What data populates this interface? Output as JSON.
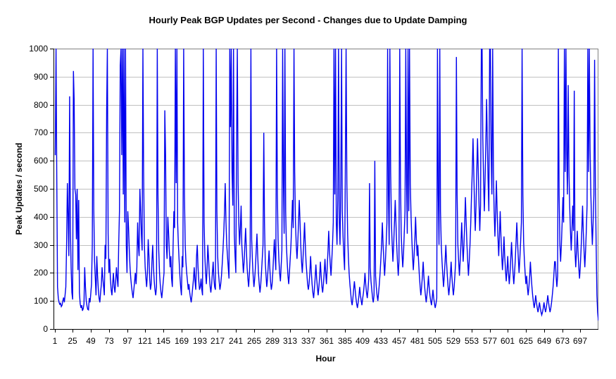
{
  "chart_data": {
    "type": "line",
    "title": "Hourly Peak BGP Updates per Second - Changes due to Update Damping",
    "xlabel": "Hour",
    "ylabel": "Peak Updates / second",
    "ylim": [
      0,
      1000
    ],
    "y_ticks": [
      0,
      100,
      200,
      300,
      400,
      500,
      600,
      700,
      800,
      900,
      1000
    ],
    "x_ticks": [
      1,
      25,
      49,
      73,
      97,
      121,
      145,
      169,
      193,
      217,
      241,
      265,
      289,
      313,
      337,
      361,
      385,
      409,
      433,
      457,
      481,
      505,
      529,
      553,
      577,
      601,
      625,
      649,
      673,
      697
    ],
    "x_start_hour": 1,
    "x_step_hours": 1,
    "grid": "horizontal",
    "legend": "none",
    "colors": {
      "line": "#0000EE",
      "gridline": "#C0C0C0",
      "plot_border": "#808080",
      "axis": "#000000",
      "text": "#000000",
      "background": "#FFFFFF"
    },
    "values": [
      620,
      1000,
      560,
      150,
      110,
      95,
      88,
      92,
      80,
      85,
      100,
      112,
      95,
      120,
      150,
      300,
      520,
      410,
      260,
      830,
      360,
      220,
      130,
      105,
      920,
      820,
      500,
      480,
      320,
      500,
      210,
      460,
      130,
      90,
      75,
      85,
      65,
      72,
      90,
      220,
      150,
      100,
      82,
      70,
      68,
      110,
      95,
      125,
      160,
      300,
      1000,
      430,
      240,
      180,
      120,
      260,
      190,
      140,
      110,
      95,
      130,
      160,
      220,
      180,
      150,
      120,
      300,
      250,
      780,
      1000,
      340,
      200,
      250,
      180,
      140,
      120,
      160,
      200,
      150,
      130,
      170,
      220,
      180,
      150,
      300,
      420,
      940,
      1000,
      620,
      1000,
      480,
      1000,
      380,
      1000,
      300,
      200,
      420,
      360,
      280,
      220,
      180,
      150,
      130,
      110,
      140,
      170,
      200,
      160,
      220,
      380,
      300,
      260,
      500,
      420,
      340,
      280,
      1000,
      560,
      300,
      220,
      180,
      150,
      200,
      320,
      260,
      180,
      140,
      160,
      240,
      300,
      220,
      170,
      140,
      120,
      150,
      1000,
      480,
      280,
      200,
      160,
      130,
      110,
      140,
      170,
      200,
      780,
      620,
      300,
      250,
      400,
      340,
      280,
      220,
      260,
      180,
      150,
      300,
      420,
      360,
      1000,
      520,
      1000,
      380,
      300,
      240,
      190,
      150,
      120,
      260,
      220,
      1000,
      480,
      300,
      240,
      200,
      170,
      140,
      160,
      130,
      110,
      95,
      120,
      150,
      180,
      220,
      170,
      140,
      260,
      300,
      220,
      170,
      140,
      150,
      180,
      140,
      120,
      1000,
      380,
      260,
      200,
      160,
      220,
      300,
      250,
      190,
      150,
      130,
      160,
      200,
      240,
      180,
      150,
      140,
      1000,
      420,
      260,
      200,
      170,
      140,
      160,
      190,
      230,
      280,
      340,
      420,
      520,
      380,
      300,
      260,
      220,
      180,
      1000,
      720,
      1000,
      560,
      440,
      1000,
      340,
      260,
      200,
      640,
      1000,
      520,
      380,
      300,
      360,
      440,
      300,
      250,
      200,
      240,
      300,
      360,
      280,
      220,
      180,
      150,
      200,
      260,
      1000,
      320,
      240,
      190,
      150,
      180,
      220,
      280,
      340,
      260,
      200,
      160,
      130,
      160,
      200,
      250,
      300,
      700,
      380,
      240,
      190,
      150,
      180,
      230,
      280,
      220,
      170,
      140,
      160,
      200,
      260,
      320,
      260,
      210,
      1000,
      480,
      320,
      250,
      200,
      170,
      220,
      280,
      1000,
      520,
      340,
      1000,
      420,
      300,
      240,
      190,
      160,
      200,
      250,
      300,
      380,
      460,
      360,
      1000,
      560,
      380,
      300,
      250,
      300,
      380,
      460,
      380,
      300,
      240,
      200,
      250,
      310,
      380,
      300,
      240,
      200,
      160,
      140,
      160,
      200,
      260,
      200,
      160,
      130,
      110,
      140,
      180,
      230,
      180,
      150,
      120,
      150,
      190,
      240,
      190,
      150,
      130,
      160,
      200,
      250,
      200,
      160,
      220,
      280,
      350,
      280,
      230,
      190,
      240,
      300,
      380,
      1000,
      480,
      1000,
      380,
      300,
      460,
      1000,
      380,
      300,
      520,
      1000,
      420,
      330,
      260,
      210,
      560,
      1000,
      520,
      340,
      260,
      200,
      160,
      130,
      100,
      85,
      110,
      140,
      170,
      140,
      110,
      90,
      75,
      95,
      120,
      150,
      120,
      100,
      85,
      110,
      130,
      160,
      200,
      160,
      130,
      110,
      140,
      180,
      520,
      220,
      170,
      140,
      110,
      95,
      120,
      600,
      190,
      150,
      120,
      100,
      130,
      160,
      200,
      250,
      300,
      380,
      300,
      240,
      190,
      240,
      300,
      380,
      1000,
      480,
      300,
      1000,
      560,
      380,
      300,
      240,
      300,
      380,
      460,
      380,
      300,
      240,
      190,
      240,
      1000,
      520,
      340,
      270,
      220,
      270,
      340,
      420,
      1000,
      520,
      340,
      1000,
      420,
      1000,
      520,
      400,
      320,
      260,
      210,
      260,
      320,
      400,
      320,
      260,
      300,
      240,
      190,
      150,
      120,
      150,
      190,
      240,
      190,
      150,
      120,
      95,
      120,
      150,
      190,
      150,
      120,
      100,
      85,
      110,
      140,
      110,
      90,
      75,
      90,
      110,
      1000,
      480,
      300,
      1000,
      420,
      300,
      240,
      190,
      150,
      190,
      240,
      300,
      240,
      190,
      150,
      120,
      150,
      190,
      240,
      190,
      150,
      120,
      150,
      190,
      240,
      970,
      480,
      300,
      240,
      190,
      240,
      300,
      380,
      300,
      240,
      300,
      380,
      470,
      380,
      300,
      240,
      190,
      240,
      300,
      380,
      470,
      560,
      680,
      560,
      440,
      350,
      440,
      560,
      680,
      560,
      440,
      350,
      440,
      1000,
      1000,
      680,
      530,
      420,
      530,
      660,
      820,
      660,
      530,
      420,
      1000,
      1000,
      640,
      480,
      1000,
      560,
      420,
      330,
      420,
      530,
      420,
      330,
      260,
      330,
      420,
      330,
      260,
      210,
      260,
      330,
      260,
      210,
      170,
      210,
      260,
      200,
      160,
      200,
      250,
      310,
      250,
      200,
      160,
      200,
      250,
      310,
      380,
      310,
      250,
      200,
      250,
      310,
      380,
      1000,
      480,
      310,
      250,
      200,
      160,
      190,
      150,
      120,
      150,
      190,
      240,
      190,
      150,
      120,
      95,
      75,
      95,
      120,
      95,
      75,
      60,
      75,
      95,
      75,
      60,
      50,
      60,
      75,
      95,
      75,
      60,
      75,
      95,
      120,
      95,
      75,
      60,
      75,
      95,
      120,
      150,
      190,
      240,
      240,
      190,
      150,
      190,
      1000,
      480,
      300,
      240,
      300,
      380,
      470,
      380,
      1000,
      560,
      1000,
      640,
      480,
      870,
      560,
      440,
      350,
      280,
      350,
      440,
      350,
      850,
      280,
      220,
      280,
      350,
      280,
      220,
      180,
      220,
      280,
      350,
      440,
      350,
      280,
      220,
      280,
      350,
      440,
      1000,
      560,
      1000,
      640,
      480,
      380,
      300,
      380,
      480,
      960,
      520,
      300,
      120,
      60,
      30
    ]
  }
}
